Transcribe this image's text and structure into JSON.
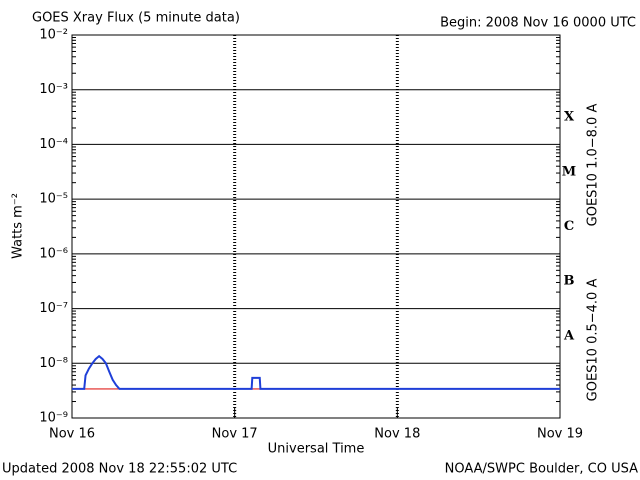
{
  "chart_data": {
    "type": "line",
    "title": "GOES Xray Flux (5 minute data)",
    "subtitle": "Begin:  2008 Nov 16 0000 UTC",
    "x_label": "Universal Time",
    "y_label": "Watts m⁻²",
    "footer_left": "Updated 2008 Nov 18 22:55:02 UTC",
    "footer_right": "NOAA/SWPC Boulder, CO USA",
    "log_scale": true,
    "grid": true,
    "xlim": [
      0,
      72
    ],
    "xticks": [
      {
        "value": 0,
        "label": "Nov 16"
      },
      {
        "value": 24,
        "label": "Nov 17"
      },
      {
        "value": 48,
        "label": "Nov 18"
      },
      {
        "value": 72,
        "label": "Nov 19"
      }
    ],
    "ylim": [
      1e-09,
      0.01
    ],
    "yticks": [
      {
        "value": 1e-09,
        "label": "10⁻⁹"
      },
      {
        "value": 1e-08,
        "label": "10⁻⁸"
      },
      {
        "value": 1e-07,
        "label": "10⁻⁷"
      },
      {
        "value": 1e-06,
        "label": "10⁻⁶"
      },
      {
        "value": 1e-05,
        "label": "10⁻⁵"
      },
      {
        "value": 0.0001,
        "label": "10⁻⁴"
      },
      {
        "value": 0.001,
        "label": "10⁻³"
      },
      {
        "value": 0.01,
        "label": "10⁻²"
      }
    ],
    "flare_classes": [
      {
        "value": 1e-08,
        "label": "A"
      },
      {
        "value": 1e-07,
        "label": "B"
      },
      {
        "value": 1e-06,
        "label": "C"
      },
      {
        "value": 1e-05,
        "label": "M"
      },
      {
        "value": 0.0001,
        "label": "X"
      }
    ],
    "x": [
      0,
      1.8,
      2.0,
      2.5,
      3.0,
      3.5,
      4.0,
      4.5,
      5.0,
      5.5,
      6.0,
      6.5,
      7.0,
      26.5,
      26.6,
      27.7,
      27.8,
      72
    ],
    "series": [
      {
        "name": "GOES10 1.0−8.0 A",
        "color": "#e0201e",
        "values": [
          3.4e-09,
          3.4e-09,
          3.4e-09,
          3.4e-09,
          3.4e-09,
          3.4e-09,
          3.4e-09,
          3.4e-09,
          3.4e-09,
          3.4e-09,
          3.4e-09,
          3.4e-09,
          3.4e-09,
          3.4e-09,
          3.4e-09,
          3.4e-09,
          3.4e-09,
          3.4e-09
        ]
      },
      {
        "name": "GOES10 0.5−4.0 A",
        "color": "#1f3fd8",
        "values": [
          3.4e-09,
          3.4e-09,
          6e-09,
          8e-09,
          1e-08,
          1.2e-08,
          1.35e-08,
          1.2e-08,
          1e-08,
          7e-09,
          5e-09,
          4e-09,
          3.4e-09,
          3.4e-09,
          5.4e-09,
          5.4e-09,
          3.4e-09,
          3.4e-09
        ]
      }
    ]
  }
}
